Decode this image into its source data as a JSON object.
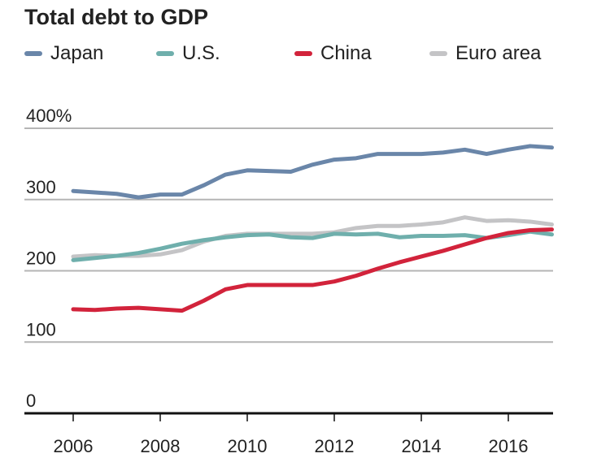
{
  "chart_data": {
    "type": "line",
    "title": "Total debt to GDP",
    "xlabel": "",
    "ylabel": "",
    "ylim": [
      0,
      400
    ],
    "xlim": [
      2006,
      2017
    ],
    "y_ticks": [
      "0",
      "100",
      "200",
      "300",
      "400%"
    ],
    "y_tick_values": [
      0,
      100,
      200,
      300,
      400
    ],
    "x_ticks": [
      "2006",
      "2008",
      "2010",
      "2012",
      "2014",
      "2016"
    ],
    "x_tick_values": [
      2006,
      2008,
      2010,
      2012,
      2014,
      2016
    ],
    "grid": true,
    "legend_position": "top",
    "x": [
      2006,
      2006.5,
      2007,
      2007.5,
      2008,
      2008.5,
      2009,
      2009.5,
      2010,
      2010.5,
      2011,
      2011.5,
      2012,
      2012.5,
      2013,
      2013.5,
      2014,
      2014.5,
      2015,
      2015.5,
      2016,
      2016.5,
      2017
    ],
    "series": [
      {
        "name": "Japan",
        "color": "#6A86A9",
        "values": [
          312,
          310,
          308,
          303,
          307,
          307,
          320,
          335,
          341,
          340,
          339,
          349,
          356,
          358,
          364,
          364,
          364,
          366,
          370,
          364,
          370,
          375,
          373
        ]
      },
      {
        "name": "U.S.",
        "color": "#6FAFAC",
        "values": [
          215,
          218,
          221,
          225,
          231,
          238,
          243,
          247,
          250,
          251,
          247,
          246,
          252,
          251,
          252,
          247,
          249,
          249,
          250,
          246,
          250,
          255,
          251
        ]
      },
      {
        "name": "China",
        "color": "#D2233B",
        "values": [
          146,
          145,
          147,
          148,
          146,
          144,
          158,
          174,
          180,
          180,
          180,
          180,
          185,
          193,
          203,
          212,
          220,
          228,
          237,
          246,
          253,
          257,
          258
        ]
      },
      {
        "name": "Euro area",
        "color": "#C4C4C6",
        "values": [
          220,
          222,
          221,
          221,
          223,
          229,
          241,
          249,
          252,
          252,
          252,
          252,
          254,
          260,
          263,
          263,
          265,
          268,
          275,
          270,
          271,
          269,
          265
        ]
      }
    ]
  }
}
